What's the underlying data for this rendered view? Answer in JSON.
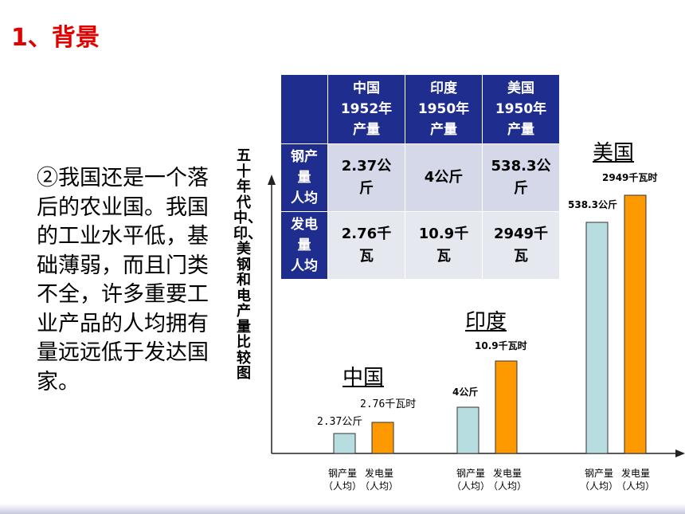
{
  "title": "1、背景",
  "paragraph": "②我国还是一个落后的农业国。我国的工业水平低，基础薄弱，而且门类不全，许多重要工业产品的人均拥有量远远低于发达国家。",
  "vertical_title": "五十年代中、印、美钢和电产量比较图",
  "table": {
    "columns": [
      "中国\n1952年\n产量",
      "印度\n1950年\n产量",
      "美国\n1950年\n产量"
    ],
    "rows": [
      {
        "label": "钢产\n量\n人均",
        "values": [
          "2.37公\n斤",
          "4公斤",
          "538.3公\n斤"
        ]
      },
      {
        "label": "发电\n量\n人均",
        "values": [
          "2.76千\n瓦",
          "10.9千\n瓦",
          "2949千\n瓦"
        ]
      }
    ]
  },
  "chart_data": {
    "type": "bar",
    "categories": [
      "中国",
      "印度",
      "美国"
    ],
    "series": [
      {
        "name": "钢产量（人均）",
        "values": [
          2.37,
          4,
          538.3
        ],
        "value_labels": [
          "2.37公斤",
          "4公斤",
          "538.3公斤"
        ],
        "color": "#b8dde0"
      },
      {
        "name": "发电量（人均）",
        "values": [
          2.76,
          10.9,
          2949
        ],
        "value_labels": [
          "2.76千瓦时",
          "10.9千瓦时",
          "2949千瓦时"
        ],
        "color": "#ff9900"
      }
    ],
    "x_tick_labels": [
      "钢产量\n（人均）",
      "发电量\n（人均）"
    ],
    "scale": "not to scale"
  }
}
